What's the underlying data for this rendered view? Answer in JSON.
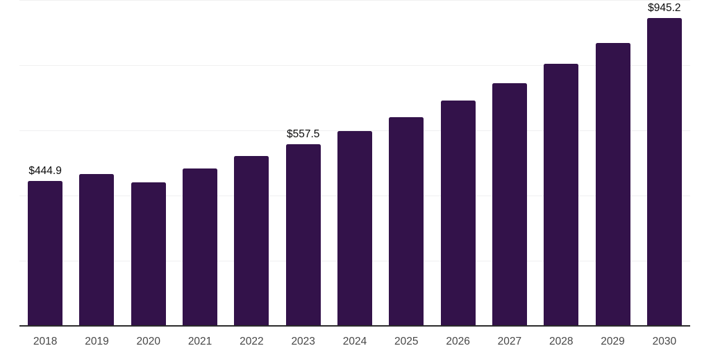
{
  "chart_data": {
    "type": "bar",
    "title": "",
    "xlabel": "",
    "ylabel": "",
    "categories": [
      "2018",
      "2019",
      "2020",
      "2021",
      "2022",
      "2023",
      "2024",
      "2025",
      "2026",
      "2027",
      "2028",
      "2029",
      "2030"
    ],
    "values": [
      444.9,
      466.2,
      440.6,
      483.2,
      521.5,
      557.5,
      598.2,
      640.7,
      691.8,
      745.0,
      804.6,
      868.5,
      945.2
    ],
    "value_labels": {
      "2018": "$444.9",
      "2023": "$557.5",
      "2030": "$945.2"
    },
    "ylim": [
      0,
      1000
    ],
    "gridline_values": [
      200,
      400,
      600,
      800,
      1000
    ],
    "grid": true,
    "legend": false,
    "colors": {
      "bar": "#33124a",
      "axis_line": "#2b2b2b",
      "gridline": "#f0f0f1",
      "value_label": "#0a0a0a",
      "tick_label": "#474747",
      "background": "#ffffff"
    }
  }
}
